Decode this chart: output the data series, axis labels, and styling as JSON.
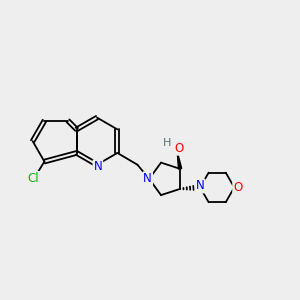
{
  "background_color": "#eeeeee",
  "bond_color": "#000000",
  "atom_colors": {
    "N": "#0000ff",
    "O": "#ff0000",
    "Cl": "#00bb00",
    "H_gray": "#5a7070",
    "C": "#000000"
  },
  "figsize": [
    3.0,
    3.0
  ],
  "dpi": 100
}
